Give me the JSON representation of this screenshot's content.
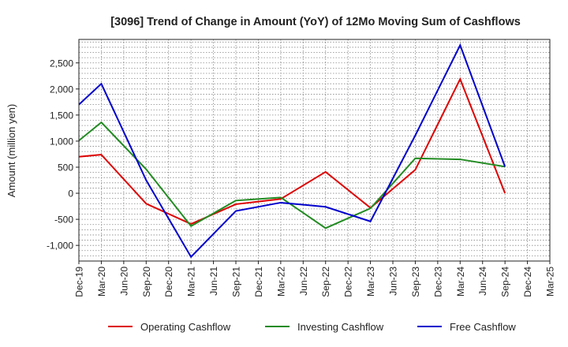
{
  "chart_data": {
    "type": "line",
    "title": "[3096]  Trend of Change in Amount (YoY) of 12Mo Moving Sum of Cashflows",
    "xlabel": "",
    "ylabel": "Amount (million yen)",
    "ylim": [
      -1300,
      2950
    ],
    "yticks": [
      -1000,
      -500,
      0,
      500,
      1000,
      1500,
      2000,
      2500
    ],
    "ytick_labels": [
      "-1,000",
      "-500",
      "0",
      "500",
      "1,000",
      "1,500",
      "2,000",
      "2,500"
    ],
    "categories": [
      "Dec-19",
      "Mar-20",
      "Jun-20",
      "Sep-20",
      "Dec-20",
      "Mar-21",
      "Jun-21",
      "Sep-21",
      "Dec-21",
      "Mar-22",
      "Jun-22",
      "Sep-22",
      "Dec-22",
      "Mar-23",
      "Jun-23",
      "Sep-23",
      "Dec-23",
      "Mar-24",
      "Jun-24",
      "Sep-24",
      "Dec-24",
      "Mar-25"
    ],
    "x": [
      "Dec-19",
      "Mar-20",
      "Sep-20",
      "Mar-21",
      "Sep-21",
      "Mar-22",
      "Sep-22",
      "Mar-23",
      "Sep-23",
      "Mar-24",
      "Sep-24"
    ],
    "grid": true,
    "legend_position": "bottom",
    "series": [
      {
        "name": "Operating Cashflow",
        "color": "#dd0000",
        "values": [
          700,
          740,
          -200,
          -590,
          -210,
          -110,
          410,
          -280,
          450,
          2190,
          0
        ]
      },
      {
        "name": "Investing Cashflow",
        "color": "#228b22",
        "values": [
          1010,
          1360,
          460,
          -630,
          -140,
          -80,
          -670,
          -290,
          670,
          650,
          510
        ]
      },
      {
        "name": "Free Cashflow",
        "color": "#0000cc",
        "values": [
          1700,
          2100,
          250,
          -1220,
          -340,
          -180,
          -260,
          -540,
          1110,
          2840,
          510
        ]
      }
    ]
  }
}
